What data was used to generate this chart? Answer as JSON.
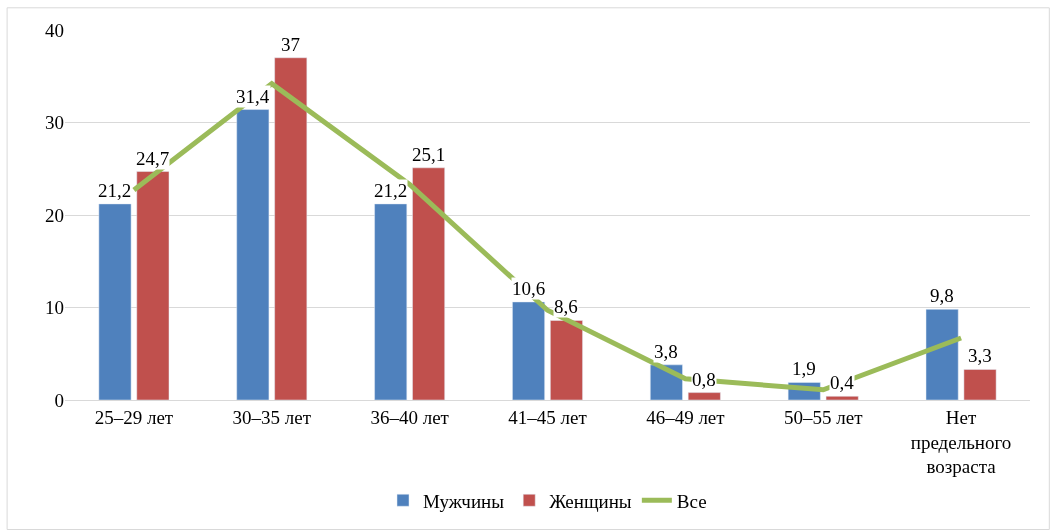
{
  "chart_data": {
    "type": "bar",
    "categories": [
      "25–29 лет",
      "30–35 лет",
      "36–40 лет",
      "41–45 лет",
      "46–49 лет",
      "50–55 лет",
      "Нет предельного возраста"
    ],
    "series": [
      {
        "name": "Мужчины",
        "color": "#4f81bd",
        "values": [
          21.2,
          31.4,
          21.2,
          10.6,
          3.8,
          1.9,
          9.8
        ],
        "value_labels": [
          "21,2",
          "31,4",
          "21,2",
          "10,6",
          "3,8",
          "1,9",
          "9,8"
        ]
      },
      {
        "name": "Женщины",
        "color": "#c0504d",
        "values": [
          24.7,
          37,
          25.1,
          8.6,
          0.8,
          0.4,
          3.3
        ],
        "value_labels": [
          "24,7",
          "37",
          "25,1",
          "8,6",
          "0,8",
          "0,4",
          "3,3"
        ]
      },
      {
        "name": "Все",
        "type": "line",
        "color": "#9bbb59",
        "values": [
          22.7,
          34.2,
          23.3,
          9.7,
          2.3,
          1.1,
          6.7
        ]
      }
    ],
    "ylim": [
      0,
      40
    ],
    "yticks": [
      0,
      10,
      20,
      30,
      40
    ],
    "grid": "y",
    "legend": "bottom",
    "marker": "none",
    "line_style": "solid"
  }
}
